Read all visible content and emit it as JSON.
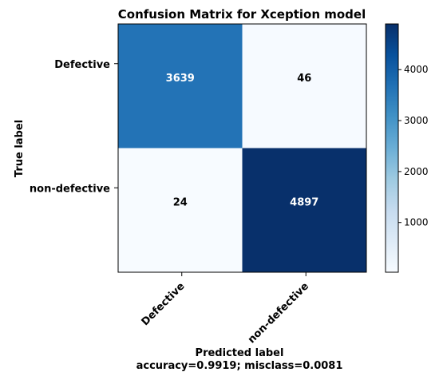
{
  "chart_data": {
    "type": "heatmap",
    "title": "Confusion Matrix for Xception model",
    "xlabel": "Predicted label",
    "xlabel_sub": "accuracy=0.9919; misclass=0.0081",
    "ylabel": "True label",
    "row_labels": [
      "Defective",
      "non-defective"
    ],
    "col_labels": [
      "Defective",
      "non-defective"
    ],
    "values": [
      [
        3639,
        46
      ],
      [
        24,
        4897
      ]
    ],
    "cell_text": [
      [
        "3639",
        "46"
      ],
      [
        "24",
        "4897"
      ]
    ],
    "colormap": "Blues",
    "colorbar": {
      "min": 24,
      "max": 4897,
      "ticks": [
        1000,
        2000,
        3000,
        4000
      ],
      "tick_labels": [
        "1000",
        "2000",
        "3000",
        "4000"
      ]
    }
  }
}
